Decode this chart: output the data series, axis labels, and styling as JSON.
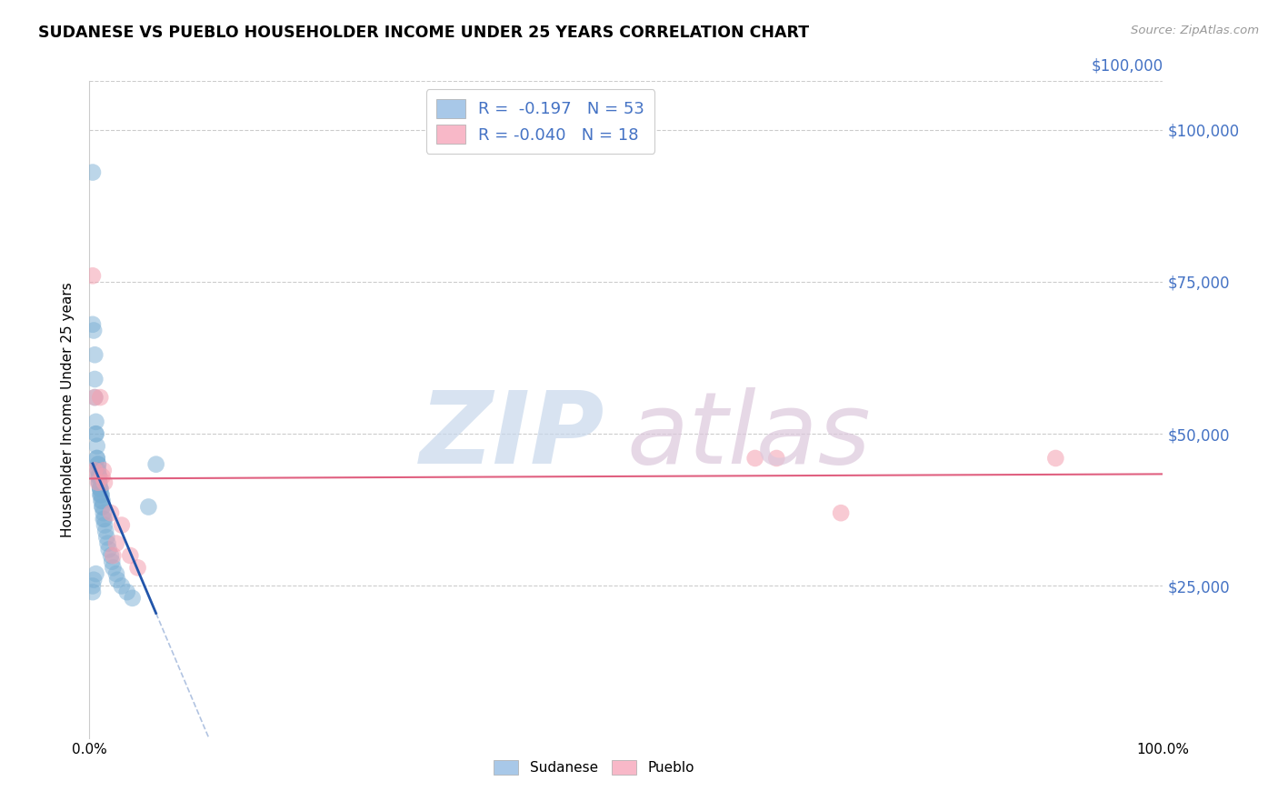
{
  "title": "SUDANESE VS PUEBLO HOUSEHOLDER INCOME UNDER 25 YEARS CORRELATION CHART",
  "source": "Source: ZipAtlas.com",
  "ylabel": "Householder Income Under 25 years",
  "ytick_labels": [
    "$25,000",
    "$50,000",
    "$75,000",
    "$100,000"
  ],
  "ytick_values": [
    25000,
    50000,
    75000,
    100000
  ],
  "ylim": [
    0,
    108000
  ],
  "xlim": [
    0.0,
    1.0
  ],
  "xtick_positions": [
    0.0,
    1.0
  ],
  "xtick_labels": [
    "0.0%",
    "100.0%"
  ],
  "sudanese_x": [
    0.003,
    0.003,
    0.004,
    0.005,
    0.005,
    0.005,
    0.006,
    0.006,
    0.006,
    0.007,
    0.007,
    0.007,
    0.008,
    0.008,
    0.008,
    0.008,
    0.008,
    0.009,
    0.009,
    0.009,
    0.009,
    0.01,
    0.01,
    0.01,
    0.01,
    0.011,
    0.011,
    0.011,
    0.012,
    0.012,
    0.012,
    0.013,
    0.013,
    0.014,
    0.014,
    0.015,
    0.016,
    0.017,
    0.018,
    0.02,
    0.021,
    0.022,
    0.025,
    0.026,
    0.03,
    0.035,
    0.04,
    0.055,
    0.062,
    0.003,
    0.004,
    0.006,
    0.003
  ],
  "sudanese_y": [
    93000,
    68000,
    67000,
    63000,
    59000,
    56000,
    52000,
    50000,
    50000,
    48000,
    46000,
    46000,
    45000,
    45000,
    44000,
    44000,
    43000,
    43000,
    43000,
    42000,
    42000,
    41000,
    41000,
    41000,
    40000,
    40000,
    40000,
    39000,
    39000,
    38000,
    38000,
    37000,
    36000,
    36000,
    35000,
    34000,
    33000,
    32000,
    31000,
    30000,
    29000,
    28000,
    27000,
    26000,
    25000,
    24000,
    23000,
    38000,
    45000,
    25000,
    26000,
    27000,
    24000
  ],
  "pueblo_x": [
    0.003,
    0.005,
    0.005,
    0.008,
    0.01,
    0.012,
    0.013,
    0.014,
    0.02,
    0.022,
    0.025,
    0.03,
    0.038,
    0.045,
    0.62,
    0.64,
    0.7,
    0.9
  ],
  "pueblo_y": [
    76000,
    56000,
    44000,
    42000,
    56000,
    43000,
    44000,
    42000,
    37000,
    30000,
    32000,
    35000,
    30000,
    28000,
    46000,
    46000,
    37000,
    46000
  ],
  "blue_line_color": "#2255aa",
  "pink_line_color": "#e06080",
  "blue_scatter_color": "#7bafd4",
  "pink_scatter_color": "#f4a0b0",
  "blue_legend_color": "#a8c8e8",
  "pink_legend_color": "#f8b8c8",
  "ytick_color": "#4472c4",
  "watermark_zip_color": "#c8d8ec",
  "watermark_atlas_color": "#dcc8dc",
  "background_color": "#ffffff",
  "grid_color": "#cccccc",
  "legend_r_color": "#333333",
  "legend_n_color": "#4472c4"
}
